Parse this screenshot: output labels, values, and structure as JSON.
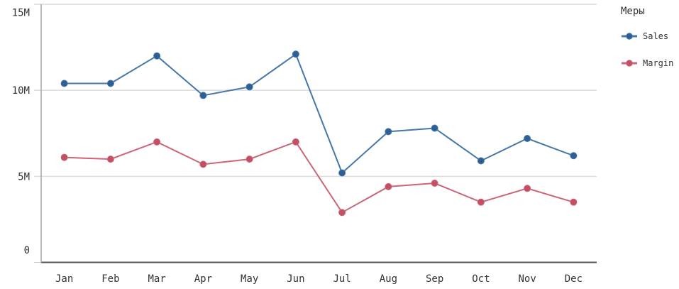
{
  "legend": {
    "title": "Меры",
    "position": "right"
  },
  "palette": {
    "grid_line": "#dcdcdc",
    "axis_line": "#a6a6a6",
    "tick_mark": "#c8c8c8",
    "baseline": "#545454",
    "text": "#333333",
    "background": "#ffffff"
  },
  "chart_data": {
    "type": "line",
    "x": [
      "Jan",
      "Feb",
      "Mar",
      "Apr",
      "May",
      "Jun",
      "Jul",
      "Aug",
      "Sep",
      "Oct",
      "Nov",
      "Dec"
    ],
    "series": [
      {
        "name": "Sales",
        "color": "#4477aa",
        "point_color": "#2e5f94",
        "values": [
          10400000,
          10400000,
          12000000,
          9700000,
          10200000,
          12100000,
          5200000,
          7600000,
          7800000,
          5900000,
          7200000,
          6200000
        ]
      },
      {
        "name": "Margin",
        "color": "#cc6677",
        "point_color": "#c24f63",
        "values": [
          6100000,
          6000000,
          7000000,
          5700000,
          6000000,
          7000000,
          2900000,
          4400000,
          4600000,
          3500000,
          4300000,
          3500000
        ]
      }
    ],
    "ylim": [
      0,
      15000000
    ],
    "y_ticks": [
      {
        "value": 0,
        "label": "0"
      },
      {
        "value": 5000000,
        "label": "5M"
      },
      {
        "value": 10000000,
        "label": "10M"
      },
      {
        "value": 15000000,
        "label": "15M"
      }
    ],
    "grid": true,
    "legend_position": "right"
  }
}
